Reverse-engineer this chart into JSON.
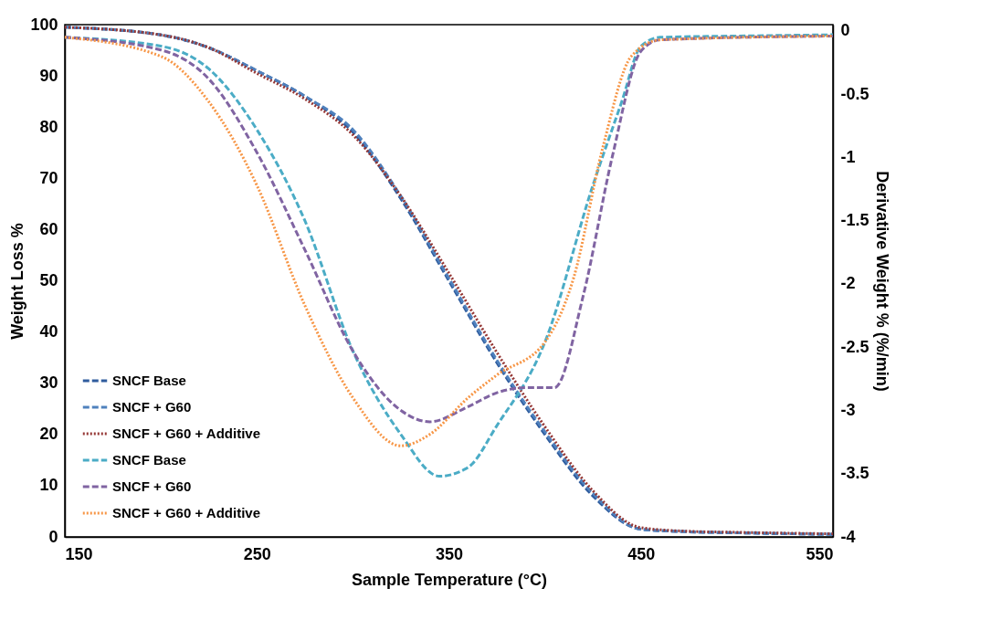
{
  "chart_data": {
    "type": "line",
    "xlabel": "Sample Temperature (°C)",
    "ylabel": "Weight Loss %",
    "y2label": "Derivative Weight   % (%/min)",
    "xlim": [
      150,
      550
    ],
    "xticks": [
      150,
      250,
      350,
      450,
      550
    ],
    "ylim": [
      0,
      100
    ],
    "yticks": [
      0,
      10,
      20,
      30,
      40,
      50,
      60,
      70,
      80,
      90,
      100
    ],
    "y2lim": [
      -4,
      0.05
    ],
    "y2ticks": [
      -4,
      -3.5,
      -3,
      -2.5,
      -2,
      -1.5,
      -1,
      -0.5,
      0
    ],
    "grid": false,
    "legend": "bottom left",
    "marker": "none",
    "series": [
      {
        "name": "SNCF Base",
        "color": "#2f5c9e",
        "line_style": "dashed",
        "x": [
          150,
          200,
          225,
          250,
          275,
          300,
          325,
          350,
          375,
          400,
          425,
          450,
          475,
          500,
          550
        ],
        "values": [
          99.5,
          98,
          95.5,
          91,
          86,
          79,
          66,
          50,
          34,
          20,
          8,
          1.5,
          1,
          0.8,
          0.5
        ]
      },
      {
        "name": "SNCF + G60",
        "color": "#4f81bd",
        "line_style": "dashed",
        "x": [
          150,
          200,
          225,
          250,
          275,
          300,
          325,
          350,
          375,
          400,
          425,
          450,
          475,
          500,
          550
        ],
        "values": [
          99.5,
          98,
          95.5,
          91,
          86,
          79.5,
          66.5,
          50.5,
          34.5,
          20.5,
          8.5,
          1.5,
          1,
          0.8,
          0.5
        ]
      },
      {
        "name": "SNCF + G60 + Additive",
        "color": "#953735",
        "line_style": "dotted",
        "x": [
          150,
          200,
          225,
          250,
          275,
          300,
          325,
          350,
          375,
          400,
          425,
          450,
          475,
          500,
          550
        ],
        "values": [
          99.5,
          98,
          95.5,
          90.5,
          85.5,
          78.5,
          66.5,
          51.5,
          36,
          21.5,
          9,
          1.8,
          1.1,
          0.9,
          0.6
        ]
      },
      {
        "name": "SNCF Base",
        "color": "#4bacc6",
        "line_style": "dashed",
        "axis": "y2",
        "x": [
          150,
          200,
          225,
          250,
          275,
          300,
          325,
          345,
          360,
          375,
          400,
          425,
          440,
          450,
          460,
          500,
          550
        ],
        "values": [
          -0.05,
          -0.12,
          -0.3,
          -0.78,
          -1.5,
          -2.53,
          -3.19,
          -3.52,
          -3.45,
          -3.12,
          -2.46,
          -1.22,
          -0.56,
          -0.12,
          -0.05,
          -0.04,
          -0.03
        ]
      },
      {
        "name": "SNCF + G60",
        "color": "#8064a2",
        "line_style": "dashed",
        "axis": "y2",
        "x": [
          150,
          200,
          225,
          250,
          275,
          300,
          325,
          340,
          360,
          375,
          390,
          405,
          420,
          435,
          450,
          460,
          550
        ],
        "values": [
          -0.05,
          -0.15,
          -0.38,
          -0.96,
          -1.73,
          -2.53,
          -3.0,
          -3.09,
          -2.97,
          -2.86,
          -2.82,
          -2.82,
          -2.09,
          -1.0,
          -0.16,
          -0.07,
          -0.04
        ]
      },
      {
        "name": "SNCF + G60 + Additive",
        "color": "#f79646",
        "line_style": "dotted",
        "axis": "y2",
        "x": [
          150,
          200,
          225,
          250,
          275,
          300,
          325,
          340,
          360,
          375,
          400,
          415,
          430,
          445,
          460,
          550
        ],
        "values": [
          -0.05,
          -0.2,
          -0.56,
          -1.22,
          -2.17,
          -2.9,
          -3.28,
          -3.19,
          -2.9,
          -2.72,
          -2.46,
          -1.95,
          -0.93,
          -0.2,
          -0.07,
          -0.04
        ]
      }
    ]
  }
}
